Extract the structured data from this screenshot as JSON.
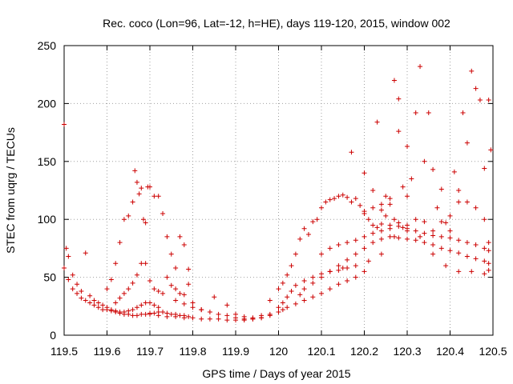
{
  "chart_data": {
    "type": "scatter",
    "title": "Rec. coco (Lon=96, Lat=-12, h=HE), days 119-120, 2015, window 002",
    "xlabel": "GPS time / Days of year 2015",
    "ylabel": "STEC from uqrg / TECUs",
    "xlim": [
      119.5,
      120.5
    ],
    "ylim": [
      0,
      250
    ],
    "xticks": [
      "119.5",
      "119.6",
      "119.7",
      "119.8",
      "119.9",
      "120",
      "120.1",
      "120.2",
      "120.3",
      "120.4",
      "120.5"
    ],
    "yticks": [
      "0",
      "50",
      "100",
      "150",
      "200",
      "250"
    ],
    "grid": true,
    "legend": "none",
    "marker": "+",
    "color": "#cc0000",
    "series": [
      {
        "x": [
          119.5,
          119.505,
          119.51,
          119.52,
          119.53,
          119.54,
          119.55,
          119.56,
          119.57,
          119.58,
          119.59,
          119.6,
          119.61,
          119.62,
          119.63,
          119.64,
          119.65,
          119.66,
          119.67,
          119.68,
          119.69,
          119.7,
          119.71,
          119.72,
          119.73,
          119.74,
          119.75,
          119.76,
          119.77,
          119.78,
          119.79
        ],
        "y": [
          182,
          75,
          68,
          52,
          44,
          38,
          71,
          34,
          30,
          28,
          26,
          24,
          22,
          20,
          19,
          18,
          18,
          17,
          17,
          18,
          18,
          19,
          19,
          20,
          20,
          19,
          18,
          18,
          17,
          17,
          16
        ]
      },
      {
        "x": [
          119.5,
          119.51,
          119.52,
          119.53,
          119.54,
          119.55,
          119.56,
          119.57,
          119.58,
          119.59,
          119.6,
          119.61,
          119.62,
          119.63,
          119.64,
          119.65,
          119.66,
          119.67,
          119.68,
          119.69,
          119.7,
          119.71,
          119.72
        ],
        "y": [
          58,
          48,
          40,
          36,
          32,
          30,
          28,
          26,
          24,
          22,
          22,
          21,
          21,
          20,
          20,
          21,
          22,
          24,
          26,
          28,
          28,
          26,
          24
        ]
      },
      {
        "x": [
          119.6,
          119.61,
          119.62,
          119.63,
          119.64,
          119.65,
          119.66,
          119.665,
          119.67,
          119.675,
          119.68,
          119.685,
          119.69,
          119.695,
          119.7,
          119.71,
          119.72,
          119.73,
          119.74,
          119.75,
          119.76,
          119.77,
          119.78,
          119.79
        ],
        "y": [
          40,
          48,
          62,
          80,
          100,
          103,
          115,
          142,
          132,
          122,
          127,
          100,
          97,
          128,
          128,
          120,
          120,
          105,
          85,
          70,
          58,
          85,
          78,
          57
        ]
      },
      {
        "x": [
          119.62,
          119.63,
          119.64,
          119.65,
          119.66,
          119.67,
          119.68,
          119.69,
          119.7,
          119.71,
          119.72,
          119.73,
          119.74,
          119.75,
          119.76,
          119.77,
          119.78,
          119.79,
          119.8
        ],
        "y": [
          28,
          32,
          36,
          40,
          45,
          52,
          62,
          62,
          47,
          40,
          38,
          36,
          50,
          43,
          40,
          36,
          35,
          44,
          28
        ]
      },
      {
        "x": [
          119.7,
          119.72,
          119.74,
          119.76,
          119.78,
          119.8,
          119.82,
          119.84,
          119.86,
          119.88,
          119.9,
          119.92,
          119.94,
          119.96,
          119.98,
          120.0,
          120.01,
          120.02,
          120.04,
          120.06,
          120.08,
          120.1,
          120.12,
          120.14,
          120.16,
          120.18,
          120.2
        ],
        "y": [
          18,
          17,
          16,
          16,
          15,
          15,
          14,
          14,
          14,
          13,
          13,
          13,
          14,
          15,
          17,
          20,
          22,
          24,
          27,
          30,
          33,
          36,
          40,
          44,
          47,
          50,
          55
        ]
      },
      {
        "x": [
          119.76,
          119.78,
          119.8,
          119.82,
          119.84,
          119.86,
          119.88,
          119.9,
          119.92,
          119.94,
          119.96,
          119.98,
          120.0,
          120.01,
          120.02,
          120.03,
          120.04,
          120.06,
          120.08,
          120.1,
          120.12,
          120.14,
          120.16
        ],
        "y": [
          30,
          27,
          24,
          22,
          20,
          18,
          17,
          15,
          14,
          14,
          15,
          18,
          24,
          28,
          33,
          38,
          43,
          47,
          50,
          53,
          55,
          56,
          58
        ]
      },
      {
        "x": [
          119.82,
          119.85,
          119.88,
          119.9,
          119.92,
          119.94,
          119.96,
          119.98
        ],
        "y": [
          22,
          33,
          26,
          18,
          16,
          15,
          17,
          30
        ]
      },
      {
        "x": [
          120.0,
          120.01,
          120.02,
          120.03,
          120.04,
          120.05,
          120.06,
          120.07,
          120.08,
          120.09,
          120.1,
          120.11,
          120.12,
          120.13,
          120.14,
          120.15,
          120.16,
          120.17,
          120.18,
          120.19,
          120.2,
          120.21,
          120.22,
          120.23,
          120.24,
          120.25,
          120.26,
          120.27,
          120.28,
          120.29,
          120.3
        ],
        "y": [
          40,
          45,
          52,
          60,
          70,
          83,
          92,
          87,
          98,
          100,
          110,
          115,
          117,
          118,
          120,
          121,
          119,
          115,
          118,
          112,
          107,
          100,
          95,
          93,
          96,
          103,
          95,
          100,
          97,
          93,
          90
        ]
      },
      {
        "x": [
          120.05,
          120.06,
          120.08,
          120.1,
          120.12,
          120.14,
          120.16,
          120.18,
          120.2,
          120.22,
          120.24,
          120.26,
          120.28,
          120.3,
          120.32,
          120.34,
          120.36,
          120.38,
          120.4,
          120.42,
          120.44,
          120.46,
          120.48,
          120.49
        ],
        "y": [
          35,
          40,
          45,
          50,
          55,
          60,
          65,
          70,
          75,
          80,
          83,
          85,
          84,
          83,
          82,
          80,
          78,
          75,
          73,
          71,
          68,
          66,
          64,
          62
        ]
      },
      {
        "x": [
          120.1,
          120.12,
          120.14,
          120.16,
          120.18,
          120.2,
          120.22,
          120.24,
          120.26,
          120.28,
          120.3,
          120.32,
          120.34,
          120.36,
          120.38,
          120.4,
          120.42,
          120.44,
          120.46,
          120.48,
          120.49
        ],
        "y": [
          70,
          75,
          78,
          80,
          82,
          85,
          88,
          90,
          92,
          94,
          92,
          90,
          88,
          86,
          85,
          84,
          82,
          80,
          78,
          75,
          73
        ]
      },
      {
        "x": [
          120.17,
          120.2,
          120.22,
          120.23,
          120.24,
          120.25,
          120.26,
          120.27,
          120.28,
          120.29,
          120.3,
          120.31,
          120.32,
          120.33,
          120.34,
          120.35,
          120.36,
          120.37,
          120.38,
          120.39,
          120.4,
          120.41,
          120.42,
          120.43,
          120.44,
          120.45,
          120.46,
          120.47,
          120.48,
          120.49,
          120.495
        ],
        "y": [
          158,
          140,
          125,
          184,
          113,
          120,
          118,
          220,
          176,
          128,
          120,
          135,
          192,
          232,
          150,
          192,
          143,
          110,
          98,
          97,
          90,
          141,
          115,
          192,
          166,
          228,
          213,
          203,
          144,
          203,
          160
        ]
      },
      {
        "x": [
          120.2,
          120.22,
          120.24,
          120.26,
          120.28,
          120.3,
          120.32,
          120.34,
          120.36,
          120.38,
          120.4,
          120.42,
          120.44,
          120.46,
          120.48,
          120.49
        ],
        "y": [
          105,
          110,
          108,
          113,
          204,
          163,
          100,
          98,
          90,
          126,
          103,
          125,
          115,
          110,
          100,
          80
        ]
      },
      {
        "x": [
          120.15,
          120.18,
          120.21,
          120.24,
          120.27,
          120.3,
          120.33,
          120.36,
          120.39,
          120.42,
          120.45,
          120.48,
          120.49
        ],
        "y": [
          58,
          60,
          64,
          70,
          85,
          95,
          85,
          70,
          60,
          55,
          55,
          53,
          56
        ]
      }
    ]
  }
}
